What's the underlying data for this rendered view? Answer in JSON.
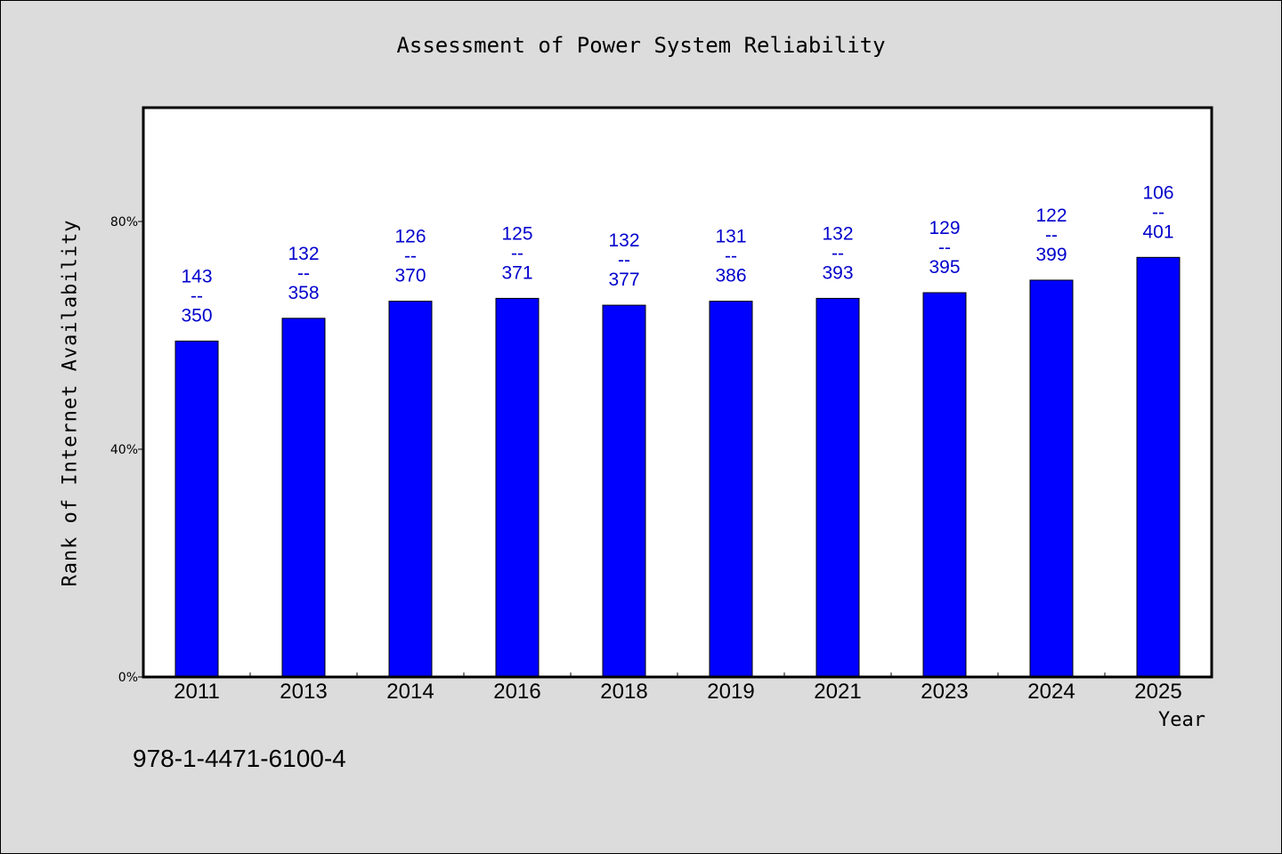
{
  "chart_data": {
    "type": "bar",
    "title": "Assessment of Power System Reliability",
    "xlabel": "Year",
    "ylabel": "Rank of Internet Availability",
    "categories": [
      "2011",
      "2013",
      "2014",
      "2016",
      "2018",
      "2019",
      "2021",
      "2023",
      "2024",
      "2025"
    ],
    "values": [
      59,
      63,
      66,
      66.5,
      65.3,
      66,
      66.5,
      67.5,
      69.7,
      73.7
    ],
    "labels": [
      {
        "rank": "143",
        "total": "350"
      },
      {
        "rank": "132",
        "total": "358"
      },
      {
        "rank": "126",
        "total": "370"
      },
      {
        "rank": "125",
        "total": "371"
      },
      {
        "rank": "132",
        "total": "377"
      },
      {
        "rank": "131",
        "total": "386"
      },
      {
        "rank": "132",
        "total": "393"
      },
      {
        "rank": "129",
        "total": "395"
      },
      {
        "rank": "122",
        "total": "399"
      },
      {
        "rank": "106",
        "total": "401"
      }
    ],
    "label_separator": "--",
    "ylim": [
      0,
      100
    ],
    "yticks": [
      0,
      40,
      80
    ],
    "ytick_labels": [
      "0%",
      "40%",
      "80%"
    ],
    "grid": false,
    "colors": {
      "bar": "#0000ff",
      "bar_edge": "#000000",
      "label": "#0000cc",
      "background": "#dcdcdc",
      "plot_background": "#ffffff"
    }
  },
  "footer": "978-1-4471-6100-4"
}
